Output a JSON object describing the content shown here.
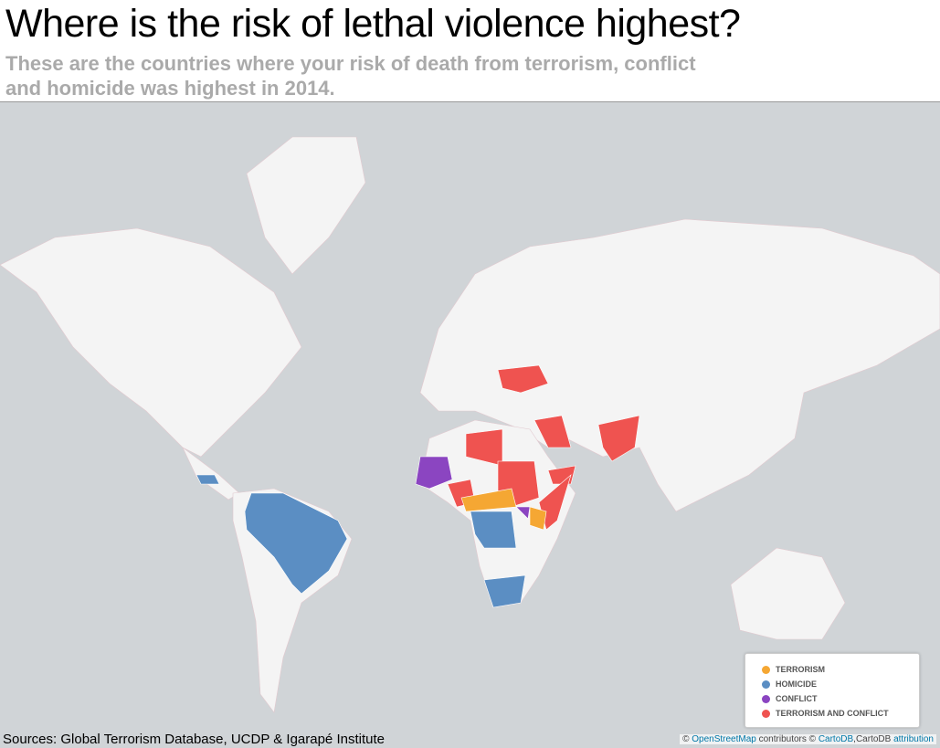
{
  "header": {
    "title": "Where is the risk of lethal violence highest?",
    "subtitle_lines": [
      "These are the countries where your risk of death from terrorism, conflict",
      "and homicide was highest in 2014."
    ]
  },
  "legend": [
    {
      "label": "TERRORISM",
      "color": "#f5a733"
    },
    {
      "label": "HOMICIDE",
      "color": "#5b8ec3"
    },
    {
      "label": "CONFLICT",
      "color": "#8b45c1"
    },
    {
      "label": "TERRORISM AND CONFLICT",
      "color": "#ef5350"
    }
  ],
  "footer": {
    "sources": "Sources: Global Terrorism Database, UCDP & Igarapé Institute",
    "attribution": {
      "prefix": "©",
      "osm": "OpenStreetMap",
      "contributors": "contributors ©",
      "cartodb": "CartoDB",
      "cartodb2": ",CartoDB",
      "link": "attribution"
    }
  }
}
